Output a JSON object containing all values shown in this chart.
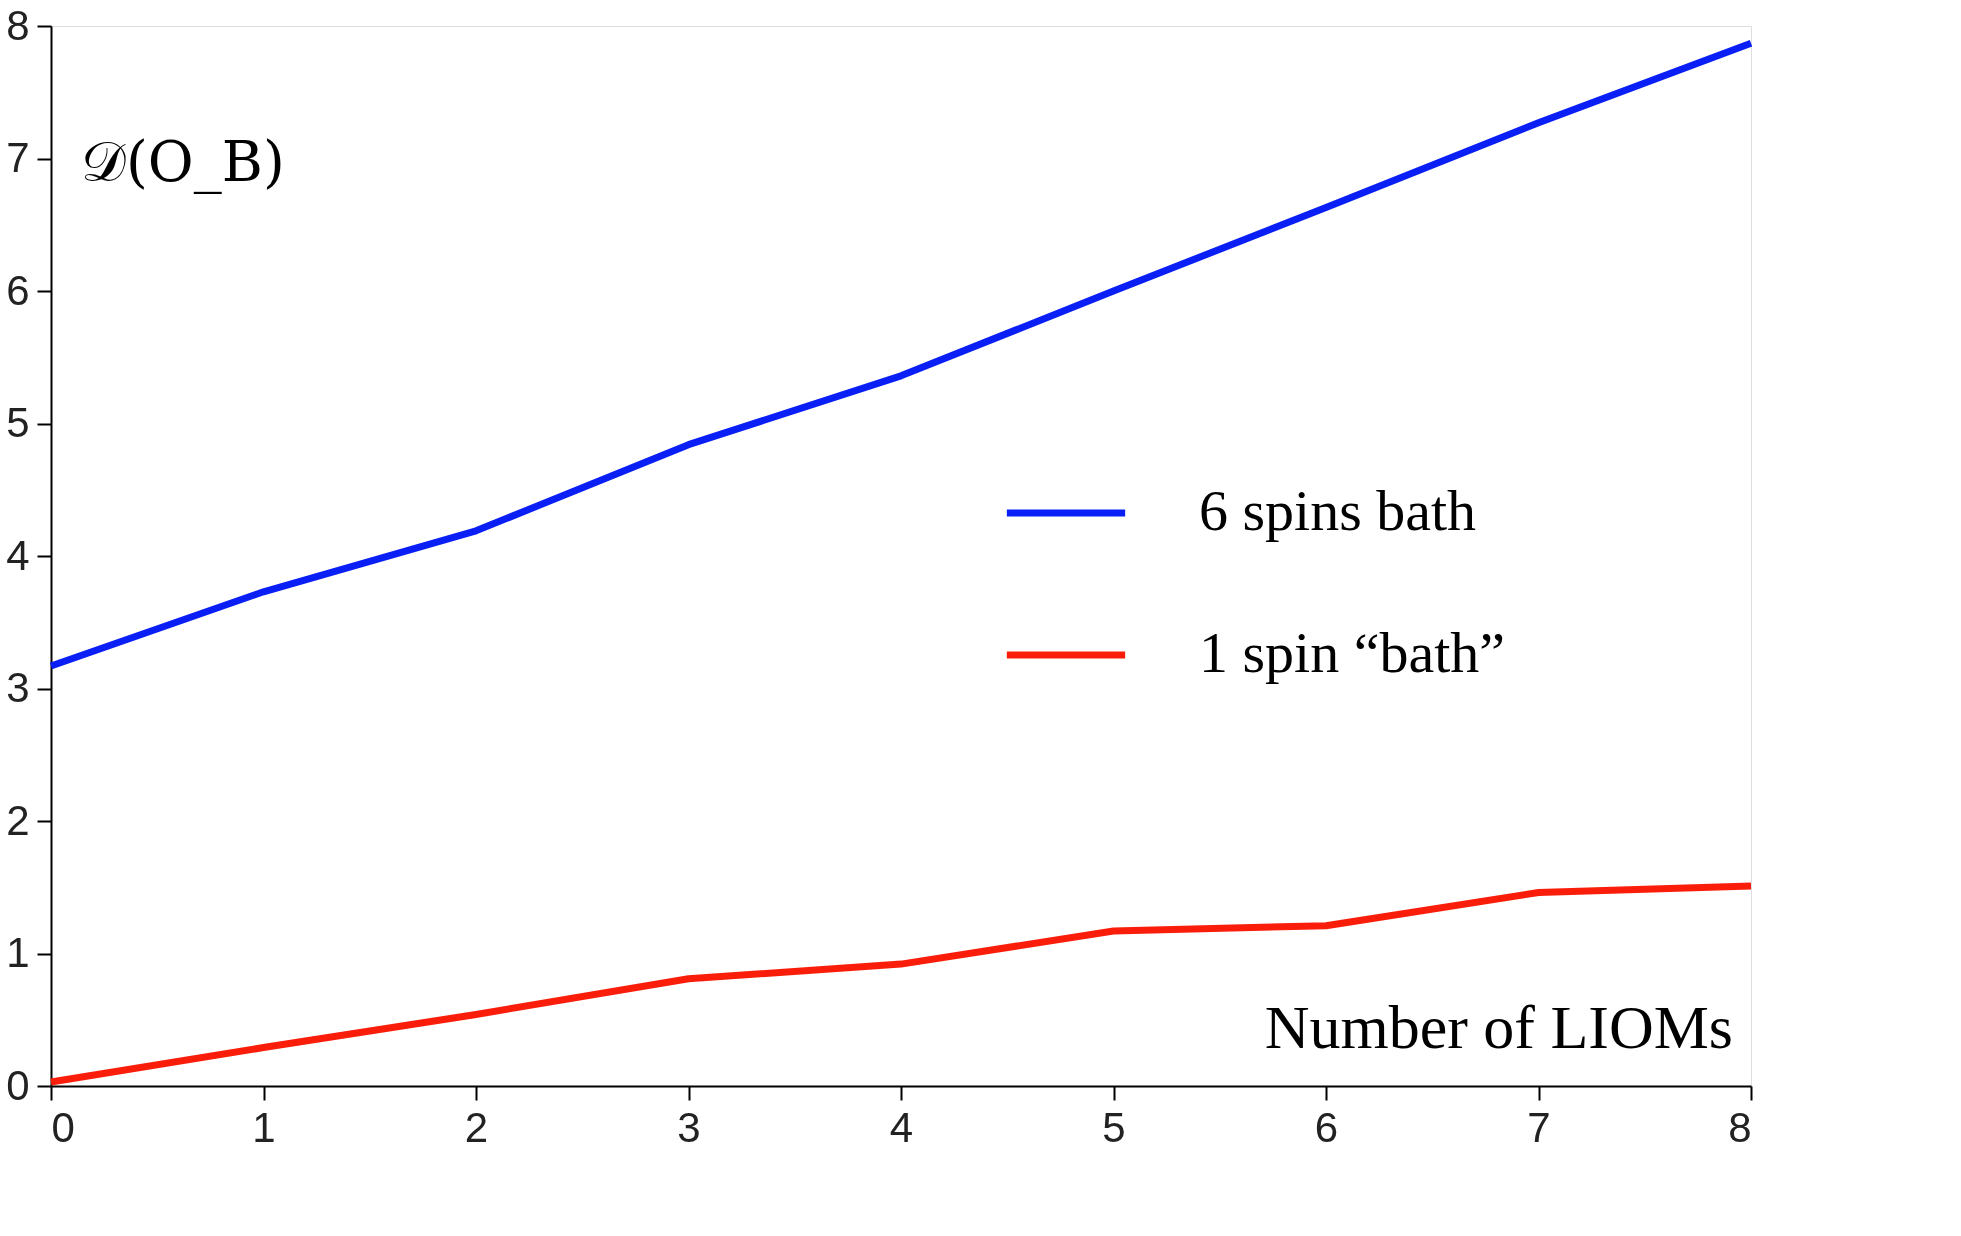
{
  "chart_data": {
    "type": "line",
    "xlabel": "Number of LIOMs",
    "ylabel": "𝒟(O_B)",
    "x": [
      0,
      1,
      2,
      3,
      4,
      5,
      6,
      7,
      8
    ],
    "series": [
      {
        "name": "6 spins bath",
        "color": "#0a1ff5",
        "values": [
          3.17,
          3.73,
          4.19,
          4.84,
          5.36,
          6.0,
          6.63,
          7.27,
          7.87
        ]
      },
      {
        "name": "1 spin “bath”",
        "color": "#fa1e0a",
        "values": [
          0.03,
          0.29,
          0.54,
          0.81,
          0.92,
          1.17,
          1.21,
          1.46,
          1.51
        ]
      }
    ],
    "xlim": [
      0,
      8
    ],
    "ylim": [
      0,
      8
    ],
    "xticks": [
      0,
      1,
      2,
      3,
      4,
      5,
      6,
      7,
      8
    ],
    "yticks": [
      0,
      1,
      2,
      3,
      4,
      5,
      6,
      7,
      8
    ],
    "grid": false,
    "legend": "right",
    "marker": "none",
    "line_style": "solid"
  }
}
